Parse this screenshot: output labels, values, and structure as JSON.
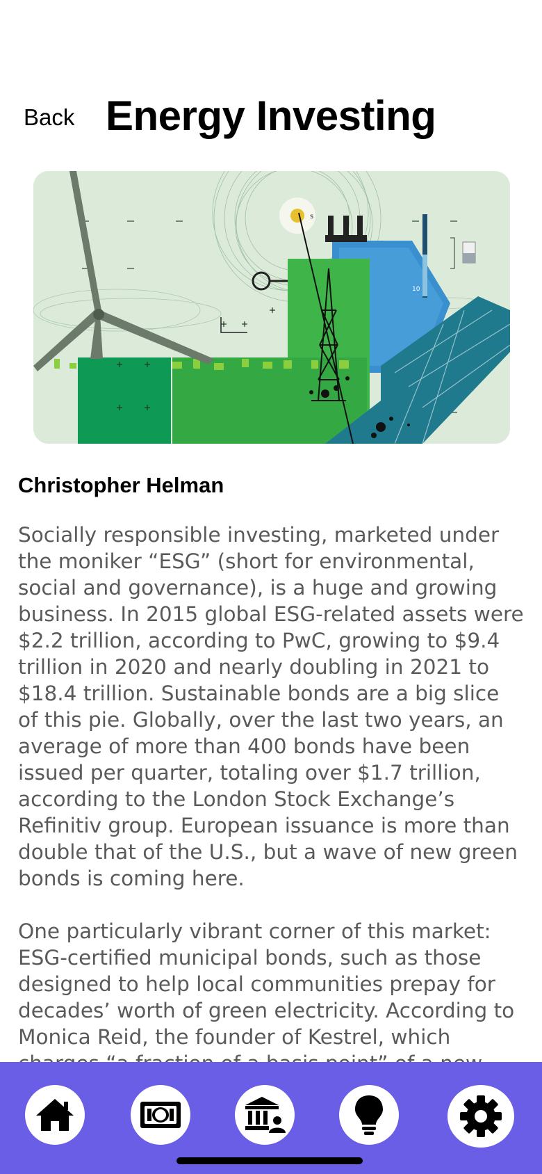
{
  "header": {
    "back_label": "Back",
    "title": "Energy Investing"
  },
  "hero_image": {
    "alt": "Energy illustration with wind turbine, oil rig, power lines and solar panel",
    "icon": "energy-collage-image",
    "labels": [
      "s",
      "10"
    ]
  },
  "article": {
    "author": "Christopher Helman",
    "paragraphs": [
      "Socially responsible investing, marketed under the moniker “ESG” (short for environmental, social and governance), is a huge and growing business. In 2015 global ESG-related assets were $2.2 trillion, according to PwC, growing to $9.4 trillion in 2020 and nearly doubling in 2021 to $18.4 trillion. Sustainable bonds are a big slice of this pie. Globally, over the last two years, an average of more than 400 bonds have been issued per quarter, totaling over $1.7 trillion, according to the London Stock Exchange’s Refinitiv group. European issuance is more than double that of the U.S., but a wave of new green bonds is coming here.",
      "One particularly vibrant corner of this market: ESG-certified municipal bonds, such as those designed to help local communities prepay for decades’ worth of green electricity. According to Monica Reid, the founder of Kestrel, which charges “a fraction of a basis point” of a new"
    ]
  },
  "tabbar": {
    "background": "#6a5de6",
    "tabs": [
      {
        "icon": "home-icon"
      },
      {
        "icon": "money-icon"
      },
      {
        "icon": "bank-icon"
      },
      {
        "icon": "lightbulb-icon"
      },
      {
        "icon": "gear-icon"
      }
    ]
  }
}
